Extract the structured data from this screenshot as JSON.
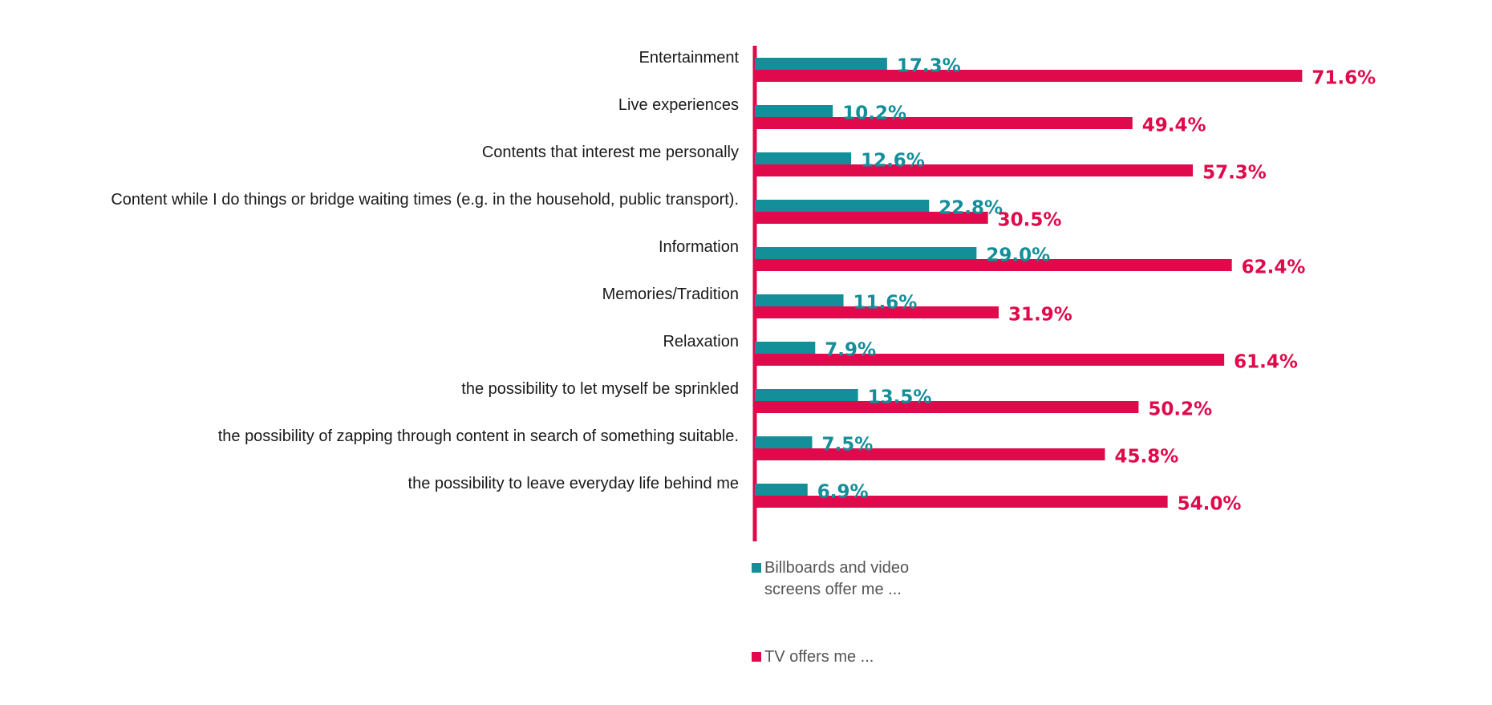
{
  "chart_data": {
    "type": "bar",
    "orientation": "horizontal",
    "title": "",
    "xlabel": "",
    "ylabel": "",
    "xlim": [
      0,
      100
    ],
    "grid": false,
    "legend_position": "bottom",
    "value_suffix": "%",
    "categories": [
      "Entertainment",
      "Live experiences",
      "Contents that interest me personally",
      "Content while I do things or bridge waiting times (e.g. in the household, public transport).",
      "Information",
      "Memories/Tradition",
      "Relaxation",
      "the possibility to let myself be sprinkled",
      "the possibility of zapping through content in search of something suitable.",
      "the possibility to leave everyday life behind me"
    ],
    "series": [
      {
        "name": "Billboards and video screens offer me ...",
        "legend_lines": [
          "Billboards and video",
          "screens offer me ..."
        ],
        "color": "#138f9a",
        "values": [
          17.3,
          10.2,
          12.6,
          22.8,
          29.0,
          11.6,
          7.9,
          13.5,
          7.5,
          6.9
        ]
      },
      {
        "name": "TV offers me ...",
        "legend_lines": [
          "TV offers me ..."
        ],
        "color": "#e0094b",
        "values": [
          71.6,
          49.4,
          57.3,
          30.5,
          62.4,
          31.9,
          61.4,
          50.2,
          45.8,
          54.0
        ]
      }
    ],
    "axis_color": "#e0094b"
  }
}
